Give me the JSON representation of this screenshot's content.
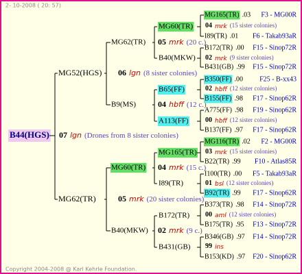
{
  "header": {
    "date": "2- 10-2008 ( 20: 57)"
  },
  "footer": "Copyright 2004-2008 @ Karl Kehrle Foundation.",
  "root": {
    "id": "B44(HGS)",
    "num": "07",
    "breed": "lgn",
    "note": "(Drones from 8 sister colonies)",
    "color": "#f0c8f0"
  },
  "level1": [
    {
      "id": "MG52(HGS)",
      "num": "06",
      "breed": "lgn",
      "note": "(8 sister colonies)"
    },
    {
      "id": "MG62(TR)",
      "num": "05",
      "breed": "mrk",
      "note": "(20 sister colonies)"
    }
  ],
  "level2": [
    {
      "id": "MG62(TR)",
      "num": "05",
      "breed": "mrk",
      "note": "(20 c.)"
    },
    {
      "id": "B9(MS)",
      "num": "04",
      "breed": "hbff",
      "note": "(12 c.)"
    },
    {
      "id": "MG60(TR)",
      "num": "04",
      "breed": "mrk",
      "note": "(15 c.)",
      "color": "#66dd66"
    },
    {
      "id": "B40(MKW)",
      "num": "02",
      "breed": "mrk",
      "note": "(9 c.)"
    }
  ],
  "level3": [
    {
      "id": "MG60(TR)",
      "num": "04",
      "breed": "mrk",
      "note": "(15 sister colonies)",
      "color": "#66dd66"
    },
    {
      "id": "B40(MKW)",
      "num": "02",
      "breed": "mrk",
      "note": "(9 sister colonies)"
    },
    {
      "id": "B65(FF)",
      "num": "02",
      "breed": "hbff",
      "note": "(12 sister colonies)",
      "color": "#55eeee"
    },
    {
      "id": "A113(FF)",
      "num": "00",
      "breed": "hbff",
      "note": "(12 sister colonies)",
      "color": "#55eeee"
    },
    {
      "id": "MG165(TR)",
      "num": "03",
      "breed": "mrk",
      "note": "(15 sister colonies)",
      "color": "#66dd66"
    },
    {
      "id": "I89(TR)",
      "num": "01",
      "breed": "bsl",
      "note": "(12 sister colonies)"
    },
    {
      "id": "B172(TR)",
      "num": "00",
      "breed": "aml",
      "note": "(12 sister colonies)"
    },
    {
      "id": "B431(GB)",
      "num": "99",
      "breed": "ins"
    }
  ],
  "level4": [
    {
      "id": "MG165(TR)",
      "score": ".03",
      "code": "F3 - MG00R",
      "color": "#66dd66"
    },
    {
      "id": "I89(TR)",
      "score": ".01",
      "code": "F6 - Takab93aR"
    },
    {
      "id": "B172(TR)",
      "score": ".00",
      "code": "F15 - Sinop72R"
    },
    {
      "id": "B431(GB)",
      "score": ".99",
      "code": "F15 - Sinop72R"
    },
    {
      "id": "B350(FF)",
      "score": ".00",
      "code": "F25 - B-xx43",
      "color": "#55eeee"
    },
    {
      "id": "B155(FF)",
      "score": ".98",
      "code": "F17 - Sinop62R",
      "color": "#55eeee"
    },
    {
      "id": "A775(FF)",
      "score": ".98",
      "code": "F19 - Sinop62R"
    },
    {
      "id": "B137(FF)",
      "score": ".97",
      "code": "F17 - Sinop62R"
    },
    {
      "id": "MG116(TR)",
      "score": ".02",
      "code": "F2 - MG00R",
      "color": "#66dd66"
    },
    {
      "id": "B22(TR)",
      "score": ".99",
      "code": "F10 - Atlas85R"
    },
    {
      "id": "I100(TR)",
      "score": ".00",
      "code": "F5 - Takab93aR"
    },
    {
      "id": "B92(TR)",
      "score": ".99",
      "code": "F17 - Sinop62R",
      "color": "#55eeee"
    },
    {
      "id": "B373(TR)",
      "score": ".98",
      "code": "F14 - Sinop72R"
    },
    {
      "id": "B175(TR)",
      "score": ".95",
      "code": "F13 - Sinop72R"
    },
    {
      "id": "B346(GB)",
      "score": ".97",
      "code": "F14 - Sinop72R"
    },
    {
      "id": "B153(KD)",
      "score": ".97",
      "code": "F20 - Sinop62R"
    }
  ]
}
